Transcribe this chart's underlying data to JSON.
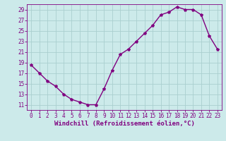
{
  "x": [
    0,
    1,
    2,
    3,
    4,
    5,
    6,
    7,
    8,
    9,
    10,
    11,
    12,
    13,
    14,
    15,
    16,
    17,
    18,
    19,
    20,
    21,
    22,
    23
  ],
  "y": [
    18.5,
    17.0,
    15.5,
    14.5,
    13.0,
    12.0,
    11.5,
    11.0,
    11.0,
    14.0,
    17.5,
    20.5,
    21.5,
    23.0,
    24.5,
    26.0,
    28.0,
    28.5,
    29.5,
    29.0,
    29.0,
    28.0,
    24.0,
    21.5
  ],
  "line_color": "#800080",
  "bg_color": "#cceaea",
  "grid_color": "#aacfcf",
  "xlabel": "Windchill (Refroidissement éolien,°C)",
  "xlim": [
    -0.5,
    23.5
  ],
  "ylim": [
    10.0,
    30.0
  ],
  "yticks": [
    11,
    13,
    15,
    17,
    19,
    21,
    23,
    25,
    27,
    29
  ],
  "xticks": [
    0,
    1,
    2,
    3,
    4,
    5,
    6,
    7,
    8,
    9,
    10,
    11,
    12,
    13,
    14,
    15,
    16,
    17,
    18,
    19,
    20,
    21,
    22,
    23
  ],
  "marker": "*",
  "marker_size": 3,
  "line_width": 1.0,
  "xlabel_fontsize": 6.5,
  "tick_fontsize": 5.5
}
